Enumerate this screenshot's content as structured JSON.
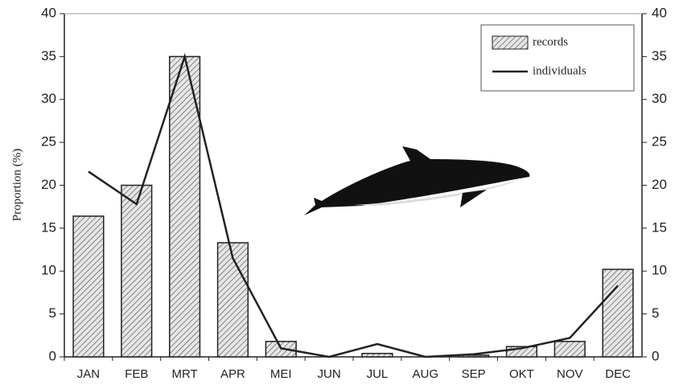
{
  "chart_data": {
    "type": "bar-line",
    "y_label": "Proportion (%)",
    "categories": [
      "JAN",
      "FEB",
      "MRT",
      "APR",
      "MEI",
      "JUN",
      "JUL",
      "AUG",
      "SEP",
      "OKT",
      "NOV",
      "DEC"
    ],
    "series": [
      {
        "name": "records",
        "type": "bar",
        "color": "#d9d9d9",
        "hatch": true,
        "values": [
          16.4,
          20,
          35,
          13.3,
          1.8,
          0,
          0.4,
          0,
          0.2,
          1.2,
          1.8,
          10.2
        ]
      },
      {
        "name": "individuals",
        "type": "line",
        "color": "#222222",
        "values": [
          21.6,
          17.8,
          35,
          11.5,
          1.0,
          0,
          1.5,
          0,
          0.3,
          1.0,
          2.2,
          8.3
        ]
      }
    ],
    "ylim": [
      0,
      40
    ],
    "yticks": [
      0,
      5,
      10,
      15,
      20,
      25,
      30,
      35,
      40
    ],
    "y2lim": [
      0,
      40
    ],
    "y2ticks": [
      0,
      5,
      10,
      15,
      20,
      25,
      30,
      35,
      40
    ],
    "legend": "top-right"
  }
}
